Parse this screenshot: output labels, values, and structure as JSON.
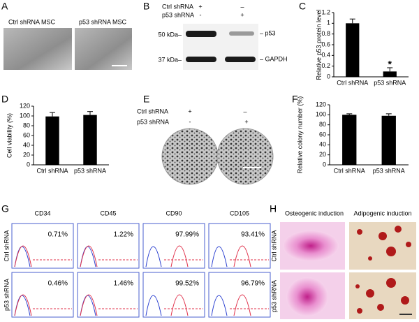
{
  "panels": {
    "A": {
      "label": "A",
      "images": [
        "Ctrl shRNA MSC",
        "p53 shRNA MSC"
      ]
    },
    "B": {
      "label": "B",
      "rows": [
        {
          "name": "Ctrl shRNA",
          "signs": [
            "+",
            "–"
          ]
        },
        {
          "name": "p53 shRNA",
          "signs": [
            "-",
            "+"
          ]
        }
      ],
      "markers": [
        "50 kDa–",
        "37 kDa–"
      ],
      "bands": [
        "– p53",
        "– GAPDH"
      ]
    },
    "E": {
      "label": "E",
      "rows": [
        {
          "name": "Ctrl shRNA",
          "signs": [
            "+",
            "–"
          ]
        },
        {
          "name": "p53 shRNA",
          "signs": [
            "-",
            "+"
          ]
        }
      ]
    },
    "G": {
      "label": "G",
      "columns": [
        "CD34",
        "CD45",
        "CD90",
        "CD105"
      ],
      "rows": [
        {
          "name": "Ctrl shRNA",
          "values": [
            "0.71%",
            "1.22%",
            "97.99%",
            "93.41%"
          ]
        },
        {
          "name": "p53 shRNA",
          "values": [
            "0.46%",
            "1.46%",
            "99.52%",
            "96.79%"
          ]
        }
      ]
    },
    "H": {
      "label": "H",
      "columns": [
        "Osteogenic induction",
        "Adipogenic induction"
      ],
      "rows": [
        "Ctrl shRNA",
        "p53 shRNA"
      ]
    }
  },
  "chart_data": [
    {
      "type": "bar",
      "panel": "C",
      "ylabel": "Relative p53 protein level",
      "categories": [
        "Ctrl shRNA",
        "p53 shRNA"
      ],
      "values": [
        1,
        0.1
      ],
      "errors": [
        0.08,
        0.07
      ],
      "annotations": [
        null,
        "*"
      ],
      "color": "#000000",
      "ylim": [
        0,
        1.2
      ],
      "yticks": [
        0,
        0.2,
        0.4,
        0.6,
        0.8,
        1,
        1.2
      ]
    },
    {
      "type": "bar",
      "panel": "D",
      "ylabel": "Cell viability (%)",
      "categories": [
        "Ctrl shRNA",
        "p53 shRNA"
      ],
      "values": [
        99,
        102
      ],
      "errors": [
        8,
        7
      ],
      "color": "#000000",
      "ylim": [
        0,
        120
      ],
      "yticks": [
        0,
        20,
        40,
        60,
        80,
        100,
        120
      ]
    },
    {
      "type": "bar",
      "panel": "F",
      "ylabel": "Relative colony number (%)",
      "categories": [
        "Ctrl shRNA",
        "p53 shRNA"
      ],
      "values": [
        100,
        98
      ],
      "errors": [
        2,
        4
      ],
      "color": "#000000",
      "ylim": [
        0,
        120
      ],
      "yticks": [
        0,
        20,
        40,
        60,
        80,
        100,
        120
      ]
    }
  ]
}
